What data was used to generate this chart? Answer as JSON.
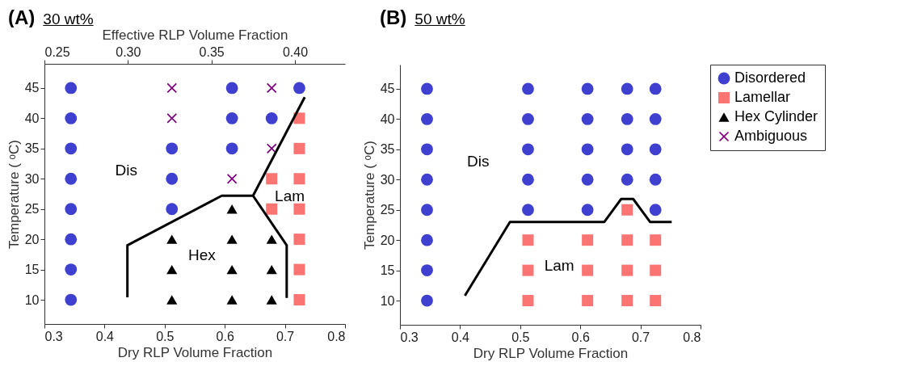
{
  "chart_data": [
    {
      "type": "scatter",
      "title": "(A)",
      "subtitle": "30 wt%",
      "xlabel": "Dry RLP Volume Fraction",
      "ylabel": "Temperature ( ᵒC)",
      "x2label": "Effective RLP Volume Fraction",
      "xlim": [
        0.3,
        0.8
      ],
      "xticks": [
        0.3,
        0.4,
        0.5,
        0.6,
        0.7,
        0.8
      ],
      "ylim": [
        6,
        49
      ],
      "yticks": [
        10,
        15,
        20,
        25,
        30,
        35,
        40,
        45
      ],
      "x2lim": [
        0.25,
        0.43
      ],
      "x2ticks": [
        0.25,
        {
          "value": 0.3,
          "label": "0.30"
        },
        0.35,
        {
          "value": 0.4,
          "label": "0.40"
        }
      ],
      "grid": false,
      "legend": false,
      "series": [
        {
          "color": "#4040d0",
          "marker": "circle",
          "x": [
            0.344,
            0.344,
            0.344,
            0.344,
            0.344,
            0.344,
            0.344,
            0.344,
            0.512,
            0.512,
            0.512,
            0.612,
            0.612,
            0.612,
            0.678,
            0.724
          ],
          "values": [
            10,
            15,
            20,
            25,
            30,
            35,
            40,
            45,
            25,
            30,
            35,
            35,
            40,
            45,
            40,
            45
          ]
        },
        {
          "color": "#fa7474",
          "marker": "square",
          "x": [
            0.678,
            0.678,
            0.724,
            0.724,
            0.724,
            0.724,
            0.724,
            0.724,
            0.724
          ],
          "values": [
            25,
            30,
            10,
            15,
            20,
            25,
            30,
            35,
            40
          ]
        },
        {
          "color": "#000000",
          "marker": "triangle",
          "x": [
            0.512,
            0.512,
            0.512,
            0.612,
            0.612,
            0.612,
            0.612,
            0.678,
            0.678,
            0.678
          ],
          "values": [
            10,
            15,
            20,
            10,
            15,
            20,
            25,
            10,
            15,
            20
          ]
        },
        {
          "color": "#800080",
          "marker": "cross",
          "x": [
            0.512,
            0.512,
            0.612,
            0.678,
            0.678
          ],
          "values": [
            40,
            45,
            30,
            35,
            45
          ]
        },
        {
          "type": "line",
          "color": "#000000",
          "x": [
            0.438,
            0.438,
            0.595,
            0.647,
            0.703,
            0.703
          ],
          "values": [
            10.4,
            19.0,
            27.2,
            27.2,
            19.0,
            10.3
          ]
        },
        {
          "type": "line",
          "color": "#000000",
          "x": [
            0.647,
            0.733
          ],
          "values": [
            27.2,
            43.5
          ]
        }
      ],
      "annotations": [
        "Dis",
        "Hex",
        "Lam"
      ]
    },
    {
      "type": "scatter",
      "title": "(B)",
      "subtitle": "50 wt%",
      "xlabel": "Dry RLP Volume Fraction",
      "ylabel": "Temperature ( ᵒC)",
      "xlim": [
        0.3,
        0.8
      ],
      "xticks": [
        0.3,
        0.4,
        0.5,
        0.6,
        0.7,
        0.8
      ],
      "ylim": [
        6,
        49
      ],
      "yticks": [
        10,
        15,
        20,
        25,
        30,
        35,
        40,
        45
      ],
      "grid": false,
      "legend": "top right",
      "series": [
        {
          "name": "Disordered",
          "color": "#4040d0",
          "marker": "circle",
          "x": [
            0.345,
            0.345,
            0.345,
            0.345,
            0.345,
            0.345,
            0.345,
            0.345,
            0.513,
            0.513,
            0.513,
            0.513,
            0.513,
            0.612,
            0.612,
            0.612,
            0.612,
            0.612,
            0.678,
            0.678,
            0.678,
            0.678,
            0.725,
            0.725,
            0.725,
            0.725,
            0.725
          ],
          "values": [
            10,
            15,
            20,
            25,
            30,
            35,
            40,
            45,
            25,
            30,
            35,
            40,
            45,
            25,
            30,
            35,
            40,
            45,
            30,
            35,
            40,
            45,
            25,
            30,
            35,
            40,
            45
          ]
        },
        {
          "name": "Lamellar",
          "color": "#fa7474",
          "marker": "square",
          "x": [
            0.513,
            0.513,
            0.513,
            0.612,
            0.612,
            0.612,
            0.678,
            0.678,
            0.678,
            0.678,
            0.725,
            0.725,
            0.725
          ],
          "values": [
            10,
            15,
            20,
            10,
            15,
            20,
            10,
            15,
            20,
            25,
            10,
            15,
            20
          ]
        },
        {
          "name": "Hex Cylinder",
          "color": "#000000",
          "marker": "triangle"
        },
        {
          "name": "Ambiguous",
          "color": "#800080",
          "marker": "cross"
        },
        {
          "type": "line",
          "color": "#000000",
          "x": [
            0.408,
            0.483,
            0.64,
            0.668,
            0.688,
            0.716,
            0.752
          ],
          "values": [
            10.8,
            23,
            23,
            26.8,
            26.8,
            23,
            23
          ]
        }
      ],
      "annotations": [
        "Dis",
        "Lam"
      ]
    }
  ]
}
